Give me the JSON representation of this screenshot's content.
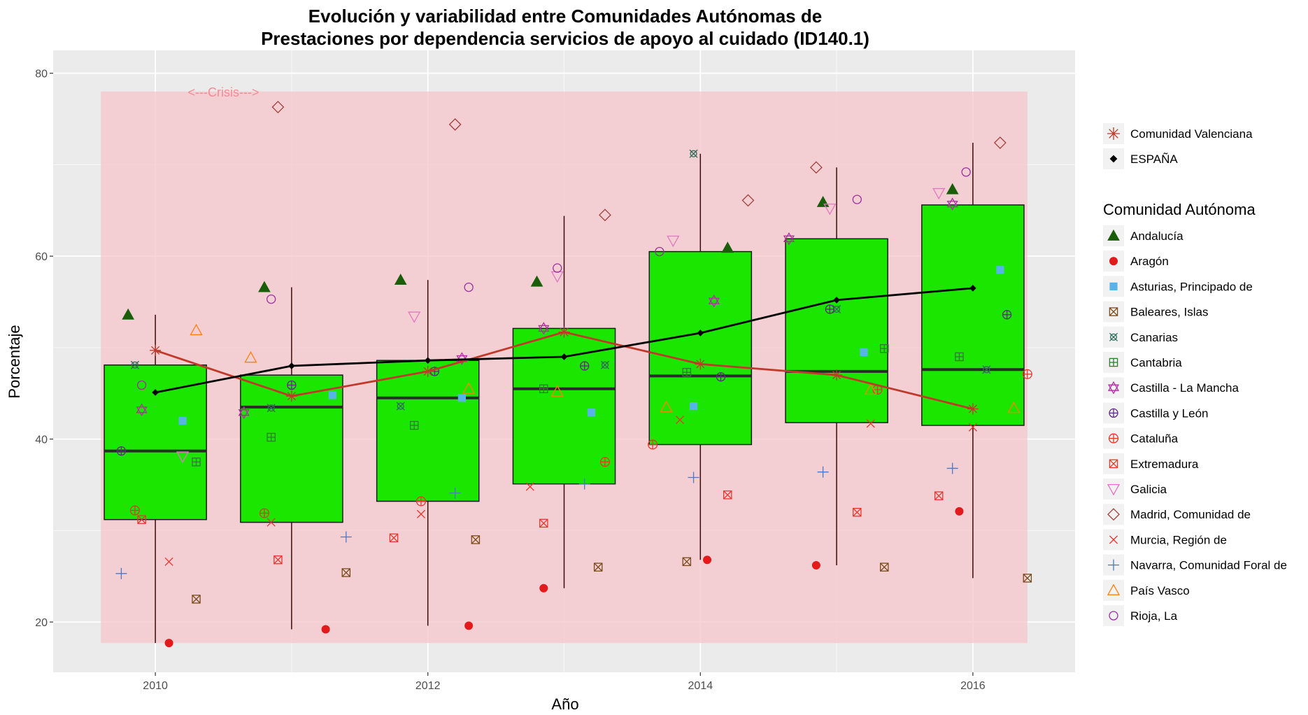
{
  "chart_data": {
    "type": "box",
    "title_line1": "Evolución y variabilidad entre Comunidades Autónomas de",
    "title_line2": "Prestaciones por dependencia servicios de apoyo al cuidado (ID140.1)",
    "xlabel": "Año",
    "ylabel": "Porcentaje",
    "xlim": [
      2009.25,
      2016.75
    ],
    "ylim": [
      14.5,
      82.5
    ],
    "x_ticks": [
      2010,
      2012,
      2014,
      2016
    ],
    "y_ticks": [
      20,
      40,
      60,
      80
    ],
    "grid": true,
    "crisis_band": {
      "x0": 2009.6,
      "x1": 2016.4,
      "y0": 17.7,
      "y1": 78.0,
      "color": "#f5c6cb",
      "label": "<---Crisis--->"
    },
    "box_color": "#1be600",
    "boxes": [
      {
        "year": 2010,
        "whisker_low": 17.7,
        "q1": 31.2,
        "median": 38.7,
        "q3": 48.1,
        "whisker_high": 53.6
      },
      {
        "year": 2011,
        "whisker_low": 19.2,
        "q1": 30.9,
        "median": 43.5,
        "q3": 47.0,
        "whisker_high": 56.6
      },
      {
        "year": 2012,
        "whisker_low": 19.6,
        "q1": 33.2,
        "median": 44.5,
        "q3": 48.6,
        "whisker_high": 57.4
      },
      {
        "year": 2013,
        "whisker_low": 23.7,
        "q1": 35.1,
        "median": 45.5,
        "q3": 52.1,
        "whisker_high": 64.4
      },
      {
        "year": 2014,
        "whisker_low": 26.8,
        "q1": 39.4,
        "median": 46.9,
        "q3": 60.5,
        "whisker_high": 71.2
      },
      {
        "year": 2015,
        "whisker_low": 26.2,
        "q1": 41.8,
        "median": 47.4,
        "q3": 61.9,
        "whisker_high": 69.7
      },
      {
        "year": 2016,
        "whisker_low": 24.8,
        "q1": 41.5,
        "median": 47.6,
        "q3": 65.6,
        "whisker_high": 72.4
      }
    ],
    "lines": [
      {
        "name": "Comunidad Valenciana",
        "color": "#c0392b",
        "shape": "asterisk",
        "x": [
          2010,
          2011,
          2012,
          2013,
          2014,
          2015,
          2016
        ],
        "y": [
          49.7,
          44.7,
          47.4,
          51.7,
          48.2,
          47.0,
          43.3
        ]
      },
      {
        "name": "ESPAÑA",
        "color": "#000000",
        "shape": "diamond",
        "x": [
          2010,
          2011,
          2012,
          2013,
          2014,
          2015,
          2016
        ],
        "y": [
          45.1,
          48.0,
          48.6,
          49.0,
          51.6,
          55.2,
          56.5
        ]
      }
    ],
    "series": [
      {
        "name": "Andalucía",
        "shape": "triangle-filled",
        "color": "#1a5e0a",
        "x": [
          2009.8,
          2010.8,
          2011.8,
          2012.8,
          2014.2,
          2014.9,
          2015.85
        ],
        "y": [
          53.6,
          56.6,
          57.4,
          57.2,
          60.9,
          65.9,
          67.3
        ]
      },
      {
        "name": "Aragón",
        "shape": "dot",
        "color": "#e31a1c",
        "x": [
          2010.1,
          2011.25,
          2012.3,
          2012.85,
          2014.05,
          2014.85,
          2015.9
        ],
        "y": [
          17.7,
          19.2,
          19.6,
          23.7,
          26.8,
          26.2,
          32.1
        ]
      },
      {
        "name": "Asturias, Principado de",
        "shape": "square-filled",
        "color": "#56b4e9",
        "x": [
          2010.2,
          2011.3,
          2012.25,
          2013.2,
          2013.95,
          2015.2,
          2016.2
        ],
        "y": [
          42.0,
          44.8,
          44.5,
          42.9,
          43.6,
          49.5,
          58.5
        ]
      },
      {
        "name": "Baleares, Islas",
        "shape": "square-x",
        "color": "#7a4a1a",
        "x": [
          2010.3,
          2011.4,
          2012.35,
          2013.25,
          2013.9,
          2015.35,
          2016.4
        ],
        "y": [
          22.5,
          25.4,
          29.0,
          26.0,
          26.6,
          26.0,
          24.8
        ]
      },
      {
        "name": "Canarias",
        "shape": "square-cross",
        "color": "#2f6b5a",
        "x": [
          2009.85,
          2010.85,
          2011.8,
          2013.3,
          2013.95,
          2015.0,
          2016.1
        ],
        "y": [
          48.1,
          43.4,
          43.6,
          48.1,
          71.2,
          54.2,
          47.6
        ]
      },
      {
        "name": "Cantabria",
        "shape": "square-plus",
        "color": "#2e7d32",
        "x": [
          2010.3,
          2010.85,
          2011.9,
          2012.85,
          2013.9,
          2015.35,
          2015.9
        ],
        "y": [
          37.5,
          40.2,
          41.5,
          45.5,
          47.3,
          49.9,
          49.0
        ]
      },
      {
        "name": "Castilla - La Mancha",
        "shape": "star",
        "color": "#b22fa3",
        "x": [
          2009.9,
          2010.65,
          2012.25,
          2012.85,
          2014.1,
          2014.65,
          2015.85
        ],
        "y": [
          43.2,
          42.9,
          48.8,
          52.1,
          55.1,
          61.9,
          65.7
        ]
      },
      {
        "name": "Castilla y León",
        "shape": "circle-plus",
        "color": "#5e2a84",
        "x": [
          2009.75,
          2011.0,
          2012.05,
          2013.15,
          2014.15,
          2014.95,
          2016.25
        ],
        "y": [
          38.7,
          45.9,
          47.4,
          48.0,
          46.8,
          54.2,
          53.6
        ]
      },
      {
        "name": "Cataluña",
        "shape": "circle-cross",
        "color": "#e8362d",
        "x": [
          2009.85,
          2010.8,
          2011.95,
          2013.3,
          2013.65,
          2015.3,
          2016.4
        ],
        "y": [
          32.2,
          31.9,
          33.2,
          37.5,
          39.4,
          45.4,
          47.1
        ]
      },
      {
        "name": "Extremadura",
        "shape": "square-x",
        "color": "#e8362d",
        "x": [
          2009.9,
          2010.9,
          2011.75,
          2012.85,
          2014.2,
          2015.15,
          2015.75
        ],
        "y": [
          31.2,
          26.8,
          29.2,
          30.8,
          33.9,
          32.0,
          33.8
        ]
      },
      {
        "name": "Galicia",
        "shape": "triangle-down",
        "color": "#e377c2",
        "x": [
          2010.2,
          2011.9,
          2012.95,
          2013.8,
          2014.95,
          2015.75
        ],
        "y": [
          38.1,
          53.4,
          57.8,
          61.7,
          65.2,
          66.9
        ]
      },
      {
        "name": "Madrid, Comunidad de",
        "shape": "diamond-open",
        "color": "#a0403c",
        "x": [
          2010.9,
          2012.2,
          2013.3,
          2014.35,
          2014.85,
          2016.2
        ],
        "y": [
          76.3,
          74.4,
          64.5,
          66.1,
          69.7,
          72.4
        ]
      },
      {
        "name": "Murcia, Región de",
        "shape": "x",
        "color": "#e8362d",
        "x": [
          2010.1,
          2010.85,
          2011.95,
          2012.75,
          2013.85,
          2015.25,
          2016.0
        ],
        "y": [
          26.6,
          30.9,
          31.8,
          34.8,
          42.1,
          41.7,
          41.3
        ]
      },
      {
        "name": "Navarra, Comunidad Foral de",
        "shape": "plus",
        "color": "#4a78c8",
        "x": [
          2009.75,
          2011.4,
          2012.2,
          2013.15,
          2013.95,
          2014.9,
          2015.85
        ],
        "y": [
          25.3,
          29.3,
          34.1,
          35.1,
          35.8,
          36.4,
          36.8
        ]
      },
      {
        "name": "País Vasco",
        "shape": "triangle-open",
        "color": "#ff7f0e",
        "x": [
          2010.3,
          2010.7,
          2012.3,
          2012.95,
          2013.75,
          2015.25,
          2016.3
        ],
        "y": [
          51.9,
          48.9,
          45.5,
          45.2,
          43.5,
          45.4,
          43.4
        ]
      },
      {
        "name": "Rioja, La",
        "shape": "circle-open",
        "color": "#9b30a0",
        "x": [
          2009.9,
          2010.85,
          2012.3,
          2012.95,
          2013.7,
          2015.15,
          2015.95
        ],
        "y": [
          45.9,
          55.3,
          56.6,
          58.7,
          60.5,
          66.2,
          69.2
        ]
      }
    ]
  },
  "legend": {
    "line_entries": [
      "Comunidad Valenciana",
      "ESPAÑA"
    ],
    "title": "Comunidad Autónoma"
  }
}
